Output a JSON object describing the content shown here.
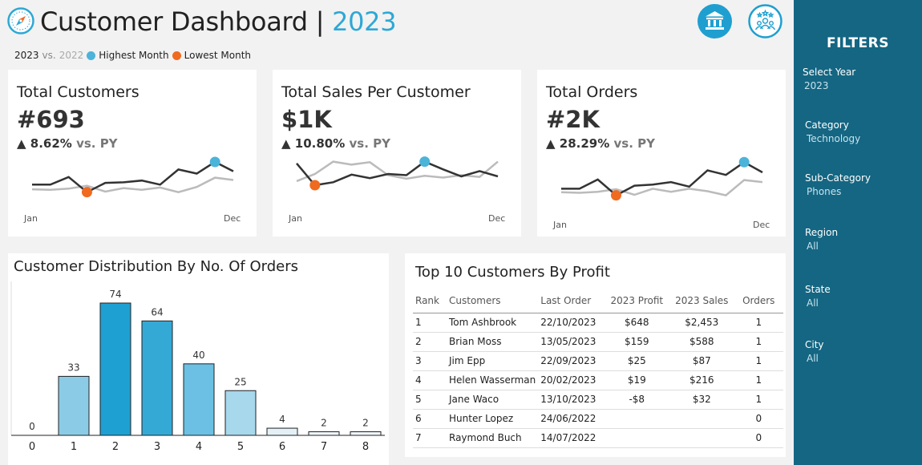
{
  "header": {
    "title": "Customer Dashboard",
    "separator": "|",
    "year": "2023",
    "legend": {
      "current_year": "2023",
      "vs": "vs.",
      "prior_year": "2022",
      "highest_label": "Highest Month",
      "lowest_label": "Lowest Month"
    },
    "icons": [
      "compass-icon",
      "bank-icon",
      "customers-group-icon"
    ]
  },
  "colors": {
    "accent": "#2ea8d5",
    "highlight": "#4cb3d9",
    "lowlight": "#f06a20",
    "sidebar": "#146682",
    "line_current": "#333333",
    "line_prior": "#bbbbbb"
  },
  "kpis": [
    {
      "title": "Total Customers",
      "value": "#693",
      "change": "8.62%",
      "vs_label": "vs. PY",
      "start_label": "Jan",
      "end_label": "Dec",
      "spark": {
        "current": [
          30,
          30,
          43,
          17,
          33,
          34,
          37,
          30,
          56,
          49,
          69,
          53
        ],
        "prior": [
          22,
          21,
          23,
          28,
          18,
          24,
          21,
          25,
          17,
          26,
          42,
          38
        ],
        "high_index": 10,
        "low_index": 3
      }
    },
    {
      "title": "Total Sales Per Customer",
      "value": "$1K",
      "change": "10.80%",
      "vs_label": "vs. PY",
      "start_label": "Jan",
      "end_label": "Dec",
      "spark": {
        "current": [
          56,
          19,
          24,
          37,
          31,
          38,
          36,
          59,
          46,
          34,
          43,
          34
        ],
        "prior": [
          26,
          38,
          59,
          54,
          58,
          36,
          30,
          35,
          32,
          36,
          33,
          59
        ],
        "high_index": 7,
        "low_index": 1
      }
    },
    {
      "title": "Total Orders",
      "value": "#2K",
      "change": "28.29%",
      "vs_label": "vs. PY",
      "start_label": "Jan",
      "end_label": "Dec",
      "spark": {
        "current": [
          34,
          34,
          52,
          21,
          40,
          42,
          47,
          38,
          70,
          61,
          86,
          66
        ],
        "prior": [
          27,
          26,
          28,
          33,
          22,
          34,
          28,
          34,
          29,
          21,
          51,
          47
        ],
        "high_index": 10,
        "low_index": 3
      }
    }
  ],
  "distribution": {
    "title": "Customer Distribution By No. Of Orders"
  },
  "chart_data": {
    "type": "bar",
    "title": "Customer Distribution By No. Of Orders",
    "categories": [
      "0",
      "1",
      "2",
      "3",
      "4",
      "5",
      "6",
      "7",
      "8"
    ],
    "values": [
      0,
      33,
      74,
      64,
      40,
      25,
      4,
      2,
      2
    ],
    "ylim": [
      0,
      80
    ],
    "grid": false,
    "data_labels": true
  },
  "top_customers": {
    "title": "Top 10 Customers By Profit",
    "columns": [
      "Rank",
      "Customers",
      "Last Order",
      "2023 Profit",
      "2023 Sales",
      "Orders"
    ],
    "rows": [
      [
        "1",
        "Tom Ashbrook",
        "22/10/2023",
        "$648",
        "$2,453",
        "1"
      ],
      [
        "2",
        "Brian Moss",
        "13/05/2023",
        "$159",
        "$588",
        "1"
      ],
      [
        "3",
        "Jim Epp",
        "22/09/2023",
        "$25",
        "$87",
        "1"
      ],
      [
        "4",
        "Helen Wasserman",
        "20/02/2023",
        "$19",
        "$216",
        "1"
      ],
      [
        "5",
        "Jane Waco",
        "13/10/2023",
        "-$8",
        "$32",
        "1"
      ],
      [
        "6",
        "Hunter Lopez",
        "24/06/2022",
        "",
        "",
        "0"
      ],
      [
        "7",
        "Raymond Buch",
        "14/07/2022",
        "",
        "",
        "0"
      ]
    ]
  },
  "filters": {
    "title": "FILTERS",
    "items": [
      {
        "label": "Select Year",
        "value": "2023"
      },
      {
        "label": "Category",
        "value": "Technology"
      },
      {
        "label": "Sub-Category",
        "value": "Phones"
      },
      {
        "label": "Region",
        "value": "All"
      },
      {
        "label": "State",
        "value": "All"
      },
      {
        "label": "City",
        "value": "All"
      }
    ]
  }
}
